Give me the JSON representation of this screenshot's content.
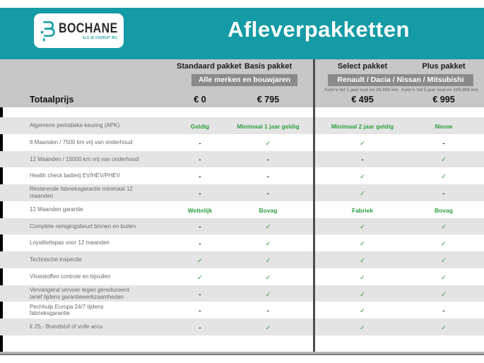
{
  "brand": {
    "name": "BOCHANE",
    "tagline": "ALS JE VOORUIT WIL"
  },
  "title": "Afleverpakketten",
  "table": {
    "package_names": [
      "Standaard pakket",
      "Basis pakket",
      "Select pakket",
      "Plus pakket"
    ],
    "group_badges": [
      "Alle merken en bouwjaren",
      "Renault / Dacia / Nissan / Mitsubishi"
    ],
    "notes": [
      "Auto's tot 1 jaar oud en 20.000 km",
      "Auto's tot 5 jaar oud en 100.000 km"
    ],
    "total_label": "Totaalprijs",
    "total_prices": [
      "€ 0",
      "€ 795",
      "€ 495",
      "€ 995"
    ],
    "rows": [
      {
        "label": "Algemene periodieke keuring (APK)",
        "values": [
          "Geldig",
          "Minimaal 1 jaar geldig",
          "Minimaal 2 jaar geldig",
          "Nieuw"
        ]
      },
      {
        "label": "6 Maanden / 7500 km vrij van onderhoud",
        "values": [
          "-",
          "✓",
          "✓",
          "-"
        ]
      },
      {
        "label": "12 Maanden / 15000 km vrij van onderhoud",
        "values": [
          "-",
          "-",
          "-",
          "✓"
        ]
      },
      {
        "label": "Health check batterij EV/HEV/PHEV",
        "values": [
          "-",
          "-",
          "✓",
          "✓"
        ]
      },
      {
        "label": "Resterende fabrieksgarantie minimaal 12 maanden",
        "values": [
          "-",
          "-",
          "✓",
          "-"
        ]
      },
      {
        "label": "12 Maanden  garantie",
        "values": [
          "Wettelijk",
          "Bovag",
          "Fabriek",
          "Bovag"
        ]
      },
      {
        "label": "Complete reinigingsbeurt binnen en buiten",
        "values": [
          "-",
          "✓",
          "✓",
          "✓"
        ]
      },
      {
        "label": "Loyaliteitspas voor 12 maanden",
        "values": [
          "-",
          "✓",
          "✓",
          "✓"
        ]
      },
      {
        "label": "Technische inspectie",
        "values": [
          "✓",
          "✓",
          "✓",
          "✓"
        ]
      },
      {
        "label": "Vloeistoffen controle en bijvullen",
        "values": [
          "✓",
          "✓",
          "✓",
          "✓"
        ]
      },
      {
        "label": "Vervangend vervoer tegen gereduceerd tarief tijdens garantiewerkzaamheden",
        "values": [
          "-",
          "✓",
          "✓",
          "✓"
        ]
      },
      {
        "label": "Pechhulp Europa 24/7 tijdens fabrieksgarantie",
        "values": [
          "-",
          "-",
          "✓",
          "-"
        ]
      },
      {
        "label": "€ 25,- Brandstof of  volle accu",
        "values": [
          "-",
          "✓",
          "✓",
          "✓"
        ]
      }
    ]
  },
  "colors": {
    "teal": "#149BA6",
    "band_gray": "#C7C7C7",
    "badge_gray": "#8A8A8A",
    "row_gray": "#E4E4E4",
    "green": "#2F9E41",
    "divider": "#4D4D4D"
  }
}
